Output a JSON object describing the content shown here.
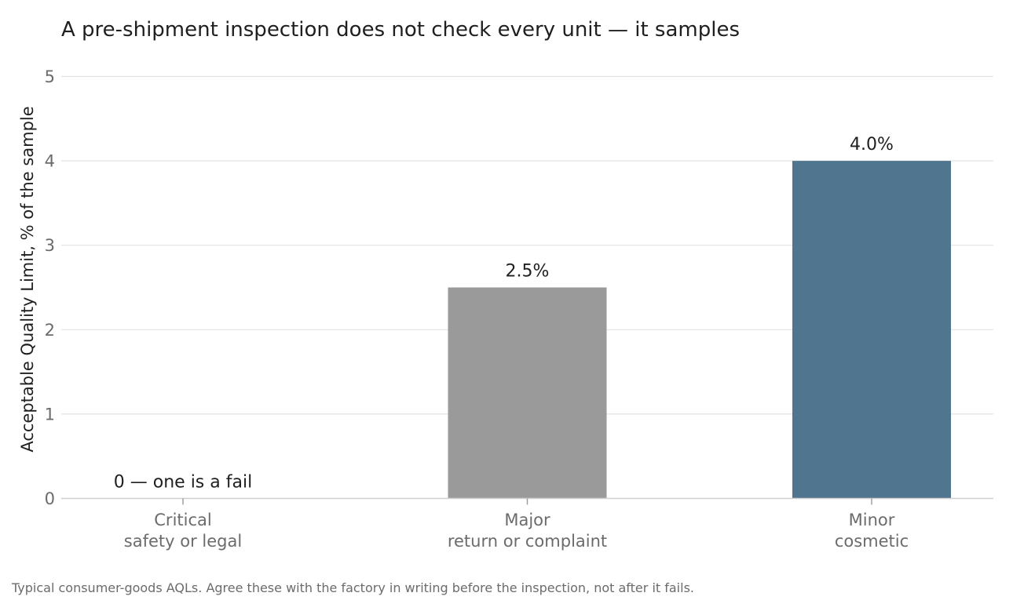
{
  "chart_data": {
    "type": "bar",
    "title": "A pre-shipment inspection does not check every unit — it samples",
    "xlabel": "",
    "ylabel": "Acceptable Quality Limit, % of the sample",
    "ylim": [
      0,
      5
    ],
    "yticks": [
      0,
      1,
      2,
      3,
      4,
      5
    ],
    "grid": true,
    "categories": [
      [
        "Critical",
        "safety or legal"
      ],
      [
        "Major",
        "return or complaint"
      ],
      [
        "Minor",
        "cosmetic"
      ]
    ],
    "values": [
      0,
      2.5,
      4.0
    ],
    "data_labels": [
      "0 — one is a fail",
      "2.5%",
      "4.0%"
    ],
    "bar_colors": [
      "#9a9a9a",
      "#9a9a9a",
      "#4f758f"
    ],
    "footnote": "Typical consumer-goods AQLs. Agree these with the factory in writing before the inspection, not after it fails."
  }
}
